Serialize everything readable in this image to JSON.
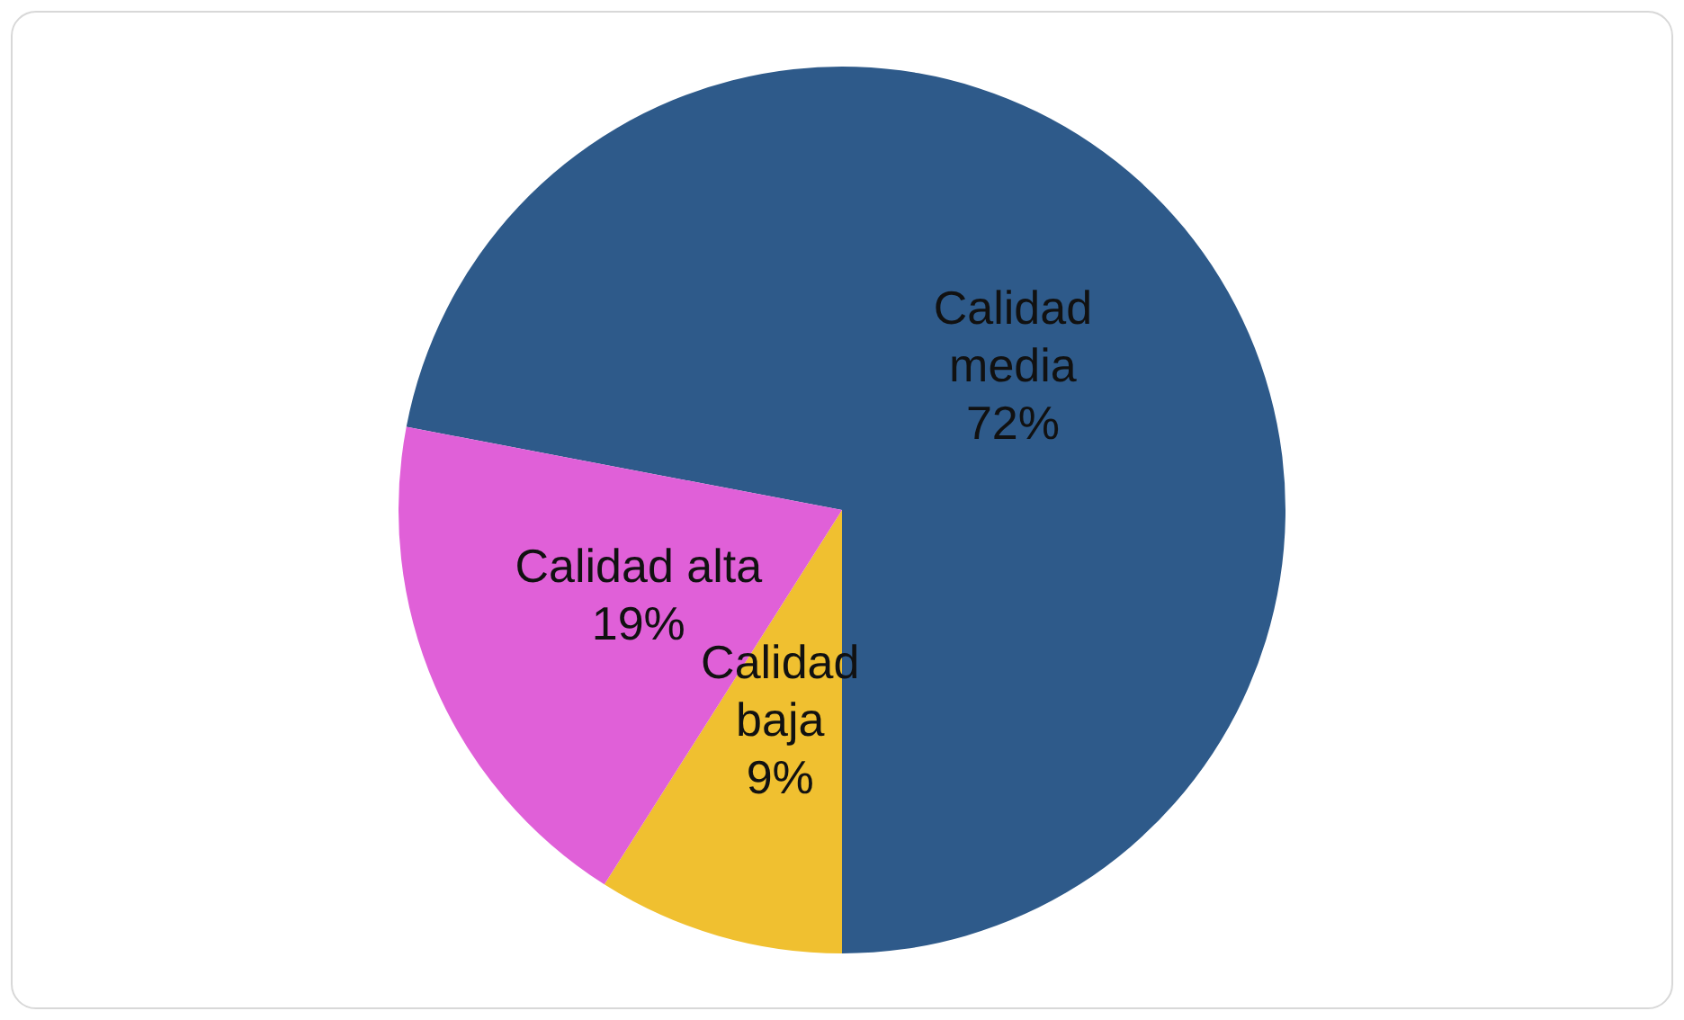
{
  "chart_data": {
    "type": "pie",
    "categories": [
      "Calidad media",
      "Calidad baja",
      "Calidad alta"
    ],
    "values": [
      72,
      9,
      19
    ],
    "colors": [
      "#2e5a8a",
      "#f0c030",
      "#e060d8"
    ],
    "value_labels": [
      "72%",
      "9%",
      "19%"
    ],
    "legend": false
  }
}
